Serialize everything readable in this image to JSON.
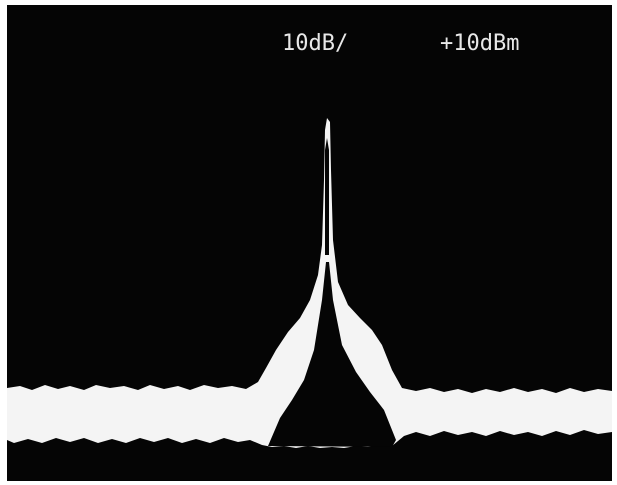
{
  "header": {
    "scale": "10dB/",
    "reference": "+10dBm"
  }
}
